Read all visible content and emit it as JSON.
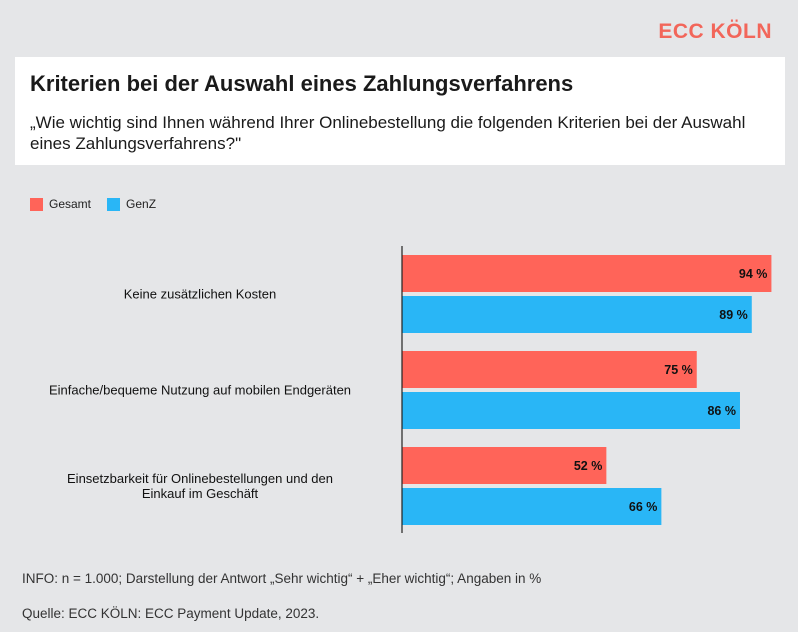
{
  "brand": {
    "logo_text": "ECC KÖLN",
    "accent": "#f2665a"
  },
  "header": {
    "title": "Kriterien bei der Auswahl eines Zahlungsverfahrens",
    "subtitle": "„Wie wichtig sind Ihnen während Ihrer Onlinebestellung die folgenden Kriterien bei der Auswahl eines Zahlungsverfahrens?\""
  },
  "legend": [
    {
      "label": "Gesamt",
      "color": "#ff6459"
    },
    {
      "label": "GenZ",
      "color": "#29b6f6"
    }
  ],
  "chart_data": {
    "type": "bar",
    "orientation": "horizontal",
    "categories": [
      [
        "Keine zusätzlichen Kosten"
      ],
      [
        "Einfache/bequeme Nutzung auf mobilen Endgeräten"
      ],
      [
        "Einsetzbarkeit für Onlinebestellungen und den",
        "Einkauf im Geschäft"
      ]
    ],
    "series": [
      {
        "name": "Gesamt",
        "color": "#ff6459",
        "values": [
          94,
          75,
          52
        ]
      },
      {
        "name": "GenZ",
        "color": "#29b6f6",
        "values": [
          89,
          86,
          66
        ]
      }
    ],
    "value_suffix": " %",
    "xlim": [
      0,
      100
    ],
    "legend_position": "top-left"
  },
  "footer": {
    "info": "INFO: n = 1.000; Darstellung der Antwort „Sehr wichtig“ + „Eher wichtig“; Angaben in %",
    "source": "Quelle: ECC KÖLN: ECC Payment Update, 2023."
  }
}
